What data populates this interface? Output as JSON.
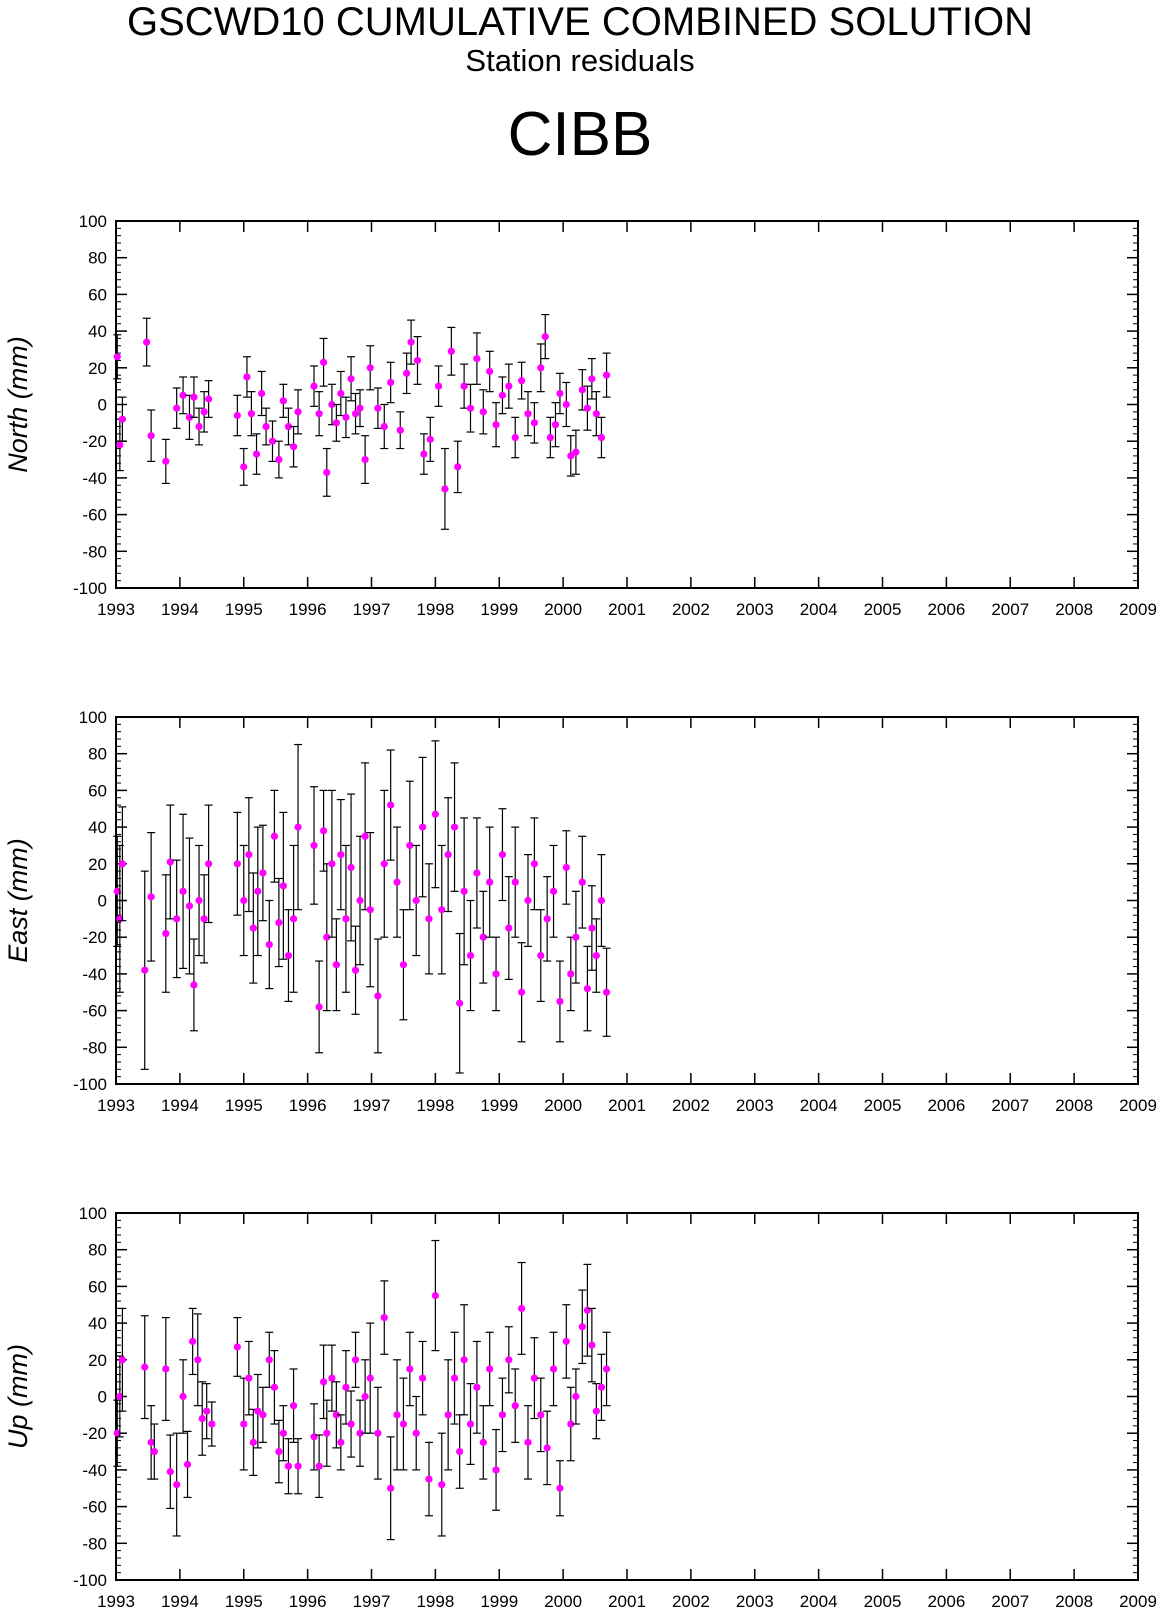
{
  "header": {
    "title": "GSCWD10 CUMULATIVE COMBINED SOLUTION",
    "subtitle": "Station residuals",
    "station": "CIBB"
  },
  "colors": {
    "point": "#ff00ff",
    "errorbar": "#000000",
    "axis": "#000000"
  },
  "chart_data": [
    {
      "type": "scatter",
      "ylabel": "North (mm)",
      "xlim": [
        1993,
        2009
      ],
      "ylim": [
        -100,
        100
      ],
      "x_ticks": [
        "1993",
        "1994",
        "1995",
        "1996",
        "1997",
        "1998",
        "1999",
        "2000",
        "2001",
        "2002",
        "2003",
        "2004",
        "2005",
        "2006",
        "2007",
        "2008",
        "2009"
      ],
      "y_ticks": [
        "100",
        "80",
        "60",
        "40",
        "20",
        "0",
        "-20",
        "-40",
        "-60",
        "-80",
        "-100"
      ],
      "error_bars": true,
      "points": [
        [
          1993.02,
          26,
          12
        ],
        [
          1993.06,
          -22,
          14
        ],
        [
          1993.1,
          -8,
          12
        ],
        [
          1993.48,
          34,
          13
        ],
        [
          1993.55,
          -17,
          14
        ],
        [
          1993.78,
          -31,
          12
        ],
        [
          1993.95,
          -2,
          11
        ],
        [
          1994.05,
          5,
          10
        ],
        [
          1994.15,
          -7,
          12
        ],
        [
          1994.22,
          4,
          11
        ],
        [
          1994.3,
          -12,
          10
        ],
        [
          1994.38,
          -4,
          11
        ],
        [
          1994.45,
          3,
          10
        ],
        [
          1994.9,
          -6,
          11
        ],
        [
          1995.0,
          -34,
          10
        ],
        [
          1995.05,
          15,
          11
        ],
        [
          1995.12,
          -5,
          12
        ],
        [
          1995.2,
          -27,
          11
        ],
        [
          1995.28,
          6,
          12
        ],
        [
          1995.35,
          -12,
          10
        ],
        [
          1995.45,
          -20,
          11
        ],
        [
          1995.55,
          -30,
          10
        ],
        [
          1995.62,
          2,
          9
        ],
        [
          1995.7,
          -12,
          10
        ],
        [
          1995.78,
          -23,
          11
        ],
        [
          1995.85,
          -4,
          12
        ],
        [
          1996.1,
          10,
          11
        ],
        [
          1996.18,
          -5,
          12
        ],
        [
          1996.25,
          23,
          13
        ],
        [
          1996.3,
          -37,
          13
        ],
        [
          1996.38,
          0,
          11
        ],
        [
          1996.45,
          -10,
          10
        ],
        [
          1996.52,
          6,
          12
        ],
        [
          1996.6,
          -7,
          11
        ],
        [
          1996.68,
          14,
          12
        ],
        [
          1996.75,
          -5,
          11
        ],
        [
          1996.82,
          -2,
          10
        ],
        [
          1996.9,
          -30,
          13
        ],
        [
          1996.98,
          20,
          12
        ],
        [
          1997.1,
          -2,
          11
        ],
        [
          1997.2,
          -12,
          12
        ],
        [
          1997.3,
          12,
          11
        ],
        [
          1997.45,
          -14,
          10
        ],
        [
          1997.55,
          17,
          11
        ],
        [
          1997.62,
          34,
          12
        ],
        [
          1997.72,
          24,
          13
        ],
        [
          1997.82,
          -27,
          11
        ],
        [
          1997.92,
          -19,
          12
        ],
        [
          1998.05,
          10,
          11
        ],
        [
          1998.15,
          -46,
          22
        ],
        [
          1998.25,
          29,
          13
        ],
        [
          1998.35,
          -34,
          14
        ],
        [
          1998.45,
          10,
          12
        ],
        [
          1998.55,
          -2,
          13
        ],
        [
          1998.65,
          25,
          14
        ],
        [
          1998.75,
          -4,
          12
        ],
        [
          1998.85,
          18,
          11
        ],
        [
          1998.95,
          -11,
          12
        ],
        [
          1999.05,
          5,
          10
        ],
        [
          1999.15,
          10,
          12
        ],
        [
          1999.25,
          -18,
          11
        ],
        [
          1999.35,
          13,
          10
        ],
        [
          1999.45,
          -5,
          12
        ],
        [
          1999.55,
          -10,
          11
        ],
        [
          1999.65,
          20,
          13
        ],
        [
          1999.72,
          37,
          12
        ],
        [
          1999.8,
          -18,
          11
        ],
        [
          1999.88,
          -11,
          12
        ],
        [
          1999.95,
          6,
          11
        ],
        [
          2000.05,
          0,
          12
        ],
        [
          2000.12,
          -28,
          11
        ],
        [
          2000.2,
          -26,
          12
        ],
        [
          2000.3,
          8,
          11
        ],
        [
          2000.38,
          -2,
          12
        ],
        [
          2000.45,
          14,
          11
        ],
        [
          2000.52,
          -5,
          12
        ],
        [
          2000.6,
          -18,
          11
        ],
        [
          2000.68,
          16,
          12
        ]
      ]
    },
    {
      "type": "scatter",
      "ylabel": "East (mm)",
      "xlim": [
        1993,
        2009
      ],
      "ylim": [
        -100,
        100
      ],
      "x_ticks": [
        "1993",
        "1994",
        "1995",
        "1996",
        "1997",
        "1998",
        "1999",
        "2000",
        "2001",
        "2002",
        "2003",
        "2004",
        "2005",
        "2006",
        "2007",
        "2008",
        "2009"
      ],
      "y_ticks": [
        "100",
        "80",
        "60",
        "40",
        "20",
        "0",
        "-20",
        "-40",
        "-60",
        "-80",
        "-100"
      ],
      "error_bars": true,
      "points": [
        [
          1993.02,
          5,
          30
        ],
        [
          1993.06,
          -10,
          40
        ],
        [
          1993.1,
          20,
          31
        ],
        [
          1993.45,
          -38,
          54
        ],
        [
          1993.55,
          2,
          35
        ],
        [
          1993.78,
          -18,
          32
        ],
        [
          1993.85,
          21,
          31
        ],
        [
          1993.95,
          -10,
          32
        ],
        [
          1994.05,
          5,
          42
        ],
        [
          1994.15,
          -3,
          37
        ],
        [
          1994.22,
          -46,
          25
        ],
        [
          1994.3,
          0,
          30
        ],
        [
          1994.38,
          -10,
          24
        ],
        [
          1994.45,
          20,
          32
        ],
        [
          1994.9,
          20,
          28
        ],
        [
          1995.0,
          0,
          30
        ],
        [
          1995.08,
          25,
          31
        ],
        [
          1995.15,
          -15,
          30
        ],
        [
          1995.22,
          5,
          35
        ],
        [
          1995.3,
          15,
          26
        ],
        [
          1995.4,
          -24,
          24
        ],
        [
          1995.48,
          35,
          25
        ],
        [
          1995.55,
          -12,
          24
        ],
        [
          1995.62,
          8,
          40
        ],
        [
          1995.7,
          -30,
          25
        ],
        [
          1995.78,
          -10,
          40
        ],
        [
          1995.85,
          40,
          45
        ],
        [
          1996.1,
          30,
          32
        ],
        [
          1996.18,
          -58,
          25
        ],
        [
          1996.25,
          38,
          22
        ],
        [
          1996.3,
          -20,
          40
        ],
        [
          1996.38,
          20,
          40
        ],
        [
          1996.45,
          -35,
          25
        ],
        [
          1996.52,
          25,
          30
        ],
        [
          1996.6,
          -10,
          40
        ],
        [
          1996.68,
          18,
          40
        ],
        [
          1996.75,
          -38,
          24
        ],
        [
          1996.82,
          0,
          35
        ],
        [
          1996.9,
          35,
          40
        ],
        [
          1996.98,
          -5,
          42
        ],
        [
          1997.1,
          -52,
          31
        ],
        [
          1997.2,
          20,
          40
        ],
        [
          1997.3,
          52,
          30
        ],
        [
          1997.4,
          10,
          30
        ],
        [
          1997.5,
          -35,
          30
        ],
        [
          1997.6,
          30,
          35
        ],
        [
          1997.7,
          0,
          30
        ],
        [
          1997.8,
          40,
          38
        ],
        [
          1997.9,
          -10,
          30
        ],
        [
          1998.0,
          47,
          40
        ],
        [
          1998.1,
          -5,
          35
        ],
        [
          1998.2,
          25,
          31
        ],
        [
          1998.3,
          40,
          35
        ],
        [
          1998.38,
          -56,
          38
        ],
        [
          1998.45,
          5,
          40
        ],
        [
          1998.55,
          -30,
          30
        ],
        [
          1998.65,
          15,
          30
        ],
        [
          1998.75,
          -20,
          25
        ],
        [
          1998.85,
          10,
          30
        ],
        [
          1998.95,
          -40,
          20
        ],
        [
          1999.05,
          25,
          25
        ],
        [
          1999.15,
          -15,
          28
        ],
        [
          1999.25,
          10,
          30
        ],
        [
          1999.35,
          -50,
          27
        ],
        [
          1999.45,
          0,
          25
        ],
        [
          1999.55,
          20,
          25
        ],
        [
          1999.65,
          -30,
          25
        ],
        [
          1999.75,
          -10,
          23
        ],
        [
          1999.85,
          5,
          25
        ],
        [
          1999.95,
          -55,
          22
        ],
        [
          2000.05,
          18,
          20
        ],
        [
          2000.12,
          -40,
          20
        ],
        [
          2000.2,
          -20,
          25
        ],
        [
          2000.3,
          10,
          25
        ],
        [
          2000.38,
          -48,
          23
        ],
        [
          2000.45,
          -15,
          23
        ],
        [
          2000.52,
          -30,
          20
        ],
        [
          2000.6,
          0,
          25
        ],
        [
          2000.68,
          -50,
          24
        ]
      ]
    },
    {
      "type": "scatter",
      "ylabel": "Up (mm)",
      "xlim": [
        1993,
        2009
      ],
      "ylim": [
        -100,
        100
      ],
      "x_ticks": [
        "1993",
        "1994",
        "1995",
        "1996",
        "1997",
        "1998",
        "1999",
        "2000",
        "2001",
        "2002",
        "2003",
        "2004",
        "2005",
        "2006",
        "2007",
        "2008",
        "2009"
      ],
      "y_ticks": [
        "100",
        "80",
        "60",
        "40",
        "20",
        "0",
        "-20",
        "-40",
        "-60",
        "-80",
        "-100"
      ],
      "error_bars": true,
      "points": [
        [
          1993.02,
          -20,
          18
        ],
        [
          1993.06,
          0,
          22
        ],
        [
          1993.1,
          20,
          28
        ],
        [
          1993.45,
          16,
          28
        ],
        [
          1993.55,
          -25,
          20
        ],
        [
          1993.6,
          -30,
          15
        ],
        [
          1993.78,
          15,
          28
        ],
        [
          1993.85,
          -41,
          20
        ],
        [
          1993.95,
          -48,
          28
        ],
        [
          1994.05,
          0,
          20
        ],
        [
          1994.12,
          -37,
          18
        ],
        [
          1994.2,
          30,
          18
        ],
        [
          1994.28,
          20,
          25
        ],
        [
          1994.35,
          -12,
          20
        ],
        [
          1994.42,
          -8,
          15
        ],
        [
          1994.5,
          -15,
          12
        ],
        [
          1994.9,
          27,
          16
        ],
        [
          1995.0,
          -15,
          25
        ],
        [
          1995.08,
          10,
          20
        ],
        [
          1995.15,
          -25,
          18
        ],
        [
          1995.22,
          -8,
          20
        ],
        [
          1995.3,
          -10,
          15
        ],
        [
          1995.4,
          20,
          15
        ],
        [
          1995.48,
          5,
          20
        ],
        [
          1995.55,
          -30,
          17
        ],
        [
          1995.62,
          -20,
          15
        ],
        [
          1995.7,
          -38,
          15
        ],
        [
          1995.78,
          -5,
          20
        ],
        [
          1995.85,
          -38,
          15
        ],
        [
          1996.1,
          -22,
          18
        ],
        [
          1996.18,
          -38,
          17
        ],
        [
          1996.25,
          8,
          20
        ],
        [
          1996.3,
          -20,
          18
        ],
        [
          1996.38,
          10,
          18
        ],
        [
          1996.45,
          -10,
          18
        ],
        [
          1996.52,
          -25,
          15
        ],
        [
          1996.6,
          5,
          20
        ],
        [
          1996.68,
          -15,
          18
        ],
        [
          1996.75,
          20,
          15
        ],
        [
          1996.82,
          -20,
          18
        ],
        [
          1996.9,
          0,
          20
        ],
        [
          1996.98,
          10,
          30
        ],
        [
          1997.1,
          -20,
          25
        ],
        [
          1997.2,
          43,
          20
        ],
        [
          1997.3,
          -50,
          28
        ],
        [
          1997.4,
          -10,
          30
        ],
        [
          1997.5,
          -15,
          25
        ],
        [
          1997.6,
          15,
          20
        ],
        [
          1997.7,
          -20,
          20
        ],
        [
          1997.8,
          10,
          20
        ],
        [
          1997.9,
          -45,
          20
        ],
        [
          1998.0,
          55,
          30
        ],
        [
          1998.1,
          -48,
          28
        ],
        [
          1998.2,
          -10,
          30
        ],
        [
          1998.3,
          10,
          25
        ],
        [
          1998.38,
          -30,
          20
        ],
        [
          1998.45,
          20,
          30
        ],
        [
          1998.55,
          -15,
          22
        ],
        [
          1998.65,
          5,
          25
        ],
        [
          1998.75,
          -25,
          20
        ],
        [
          1998.85,
          15,
          20
        ],
        [
          1998.95,
          -40,
          22
        ],
        [
          1999.05,
          -10,
          20
        ],
        [
          1999.15,
          20,
          18
        ],
        [
          1999.25,
          -5,
          20
        ],
        [
          1999.35,
          48,
          25
        ],
        [
          1999.45,
          -25,
          20
        ],
        [
          1999.55,
          10,
          22
        ],
        [
          1999.65,
          -10,
          20
        ],
        [
          1999.75,
          -28,
          20
        ],
        [
          1999.85,
          15,
          20
        ],
        [
          1999.95,
          -50,
          15
        ],
        [
          2000.05,
          30,
          20
        ],
        [
          2000.12,
          -15,
          20
        ],
        [
          2000.2,
          0,
          15
        ],
        [
          2000.3,
          38,
          20
        ],
        [
          2000.38,
          47,
          25
        ],
        [
          2000.45,
          28,
          20
        ],
        [
          2000.52,
          -8,
          15
        ],
        [
          2000.6,
          5,
          18
        ],
        [
          2000.68,
          15,
          20
        ]
      ]
    }
  ]
}
